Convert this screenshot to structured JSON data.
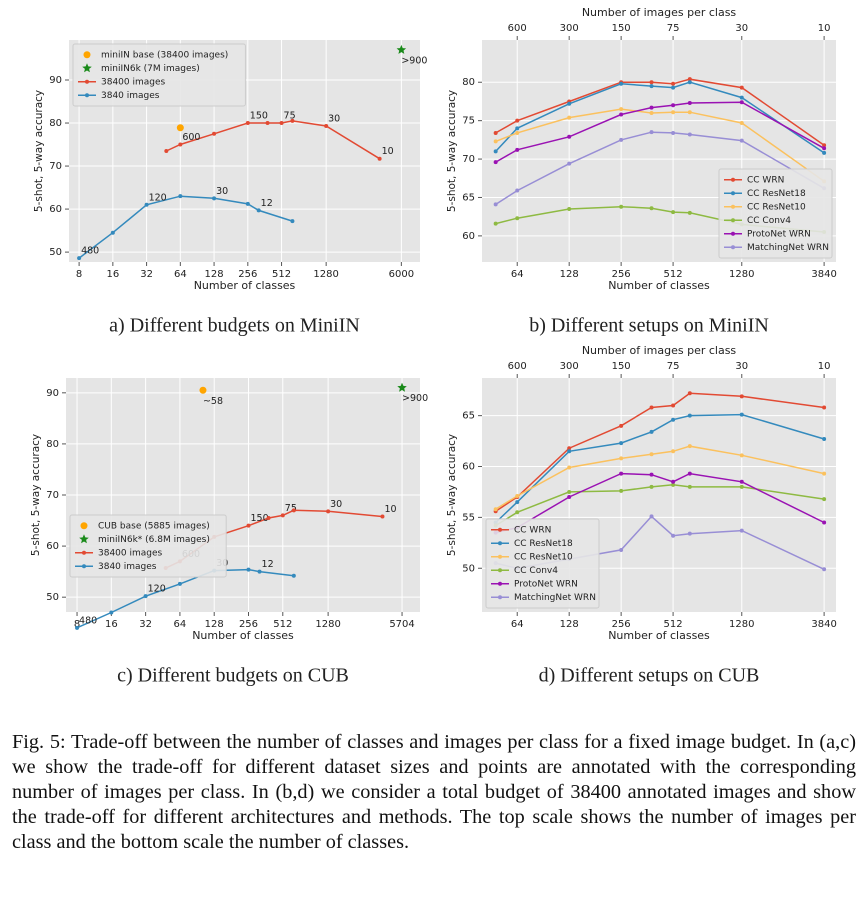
{
  "chart_data": [
    {
      "type": "line",
      "caption": "a) Different budgets on MiniIN",
      "xlabel": "Number of classes",
      "ylabel": "5-shot, 5-way accuracy",
      "xscale": "log",
      "xlim": [
        6.5,
        8800
      ],
      "ylim": [
        47.7,
        99.3
      ],
      "xticks": [
        8,
        16,
        32,
        64,
        128,
        256,
        512,
        1280,
        6000
      ],
      "yticks": [
        50,
        60,
        70,
        80,
        90
      ],
      "grid": true,
      "legend": "upper left",
      "series": [
        {
          "name": "miniIN base (38400 images)",
          "kind": "scatter",
          "marker": "circle",
          "color": "#ffa500",
          "x": [
            64
          ],
          "values": [
            78.9
          ],
          "point_labels": [
            null
          ]
        },
        {
          "name": "miniIN6k (7M images)",
          "kind": "scatter",
          "marker": "star",
          "color": "#1a8a1a",
          "x": [
            6000
          ],
          "values": [
            97
          ],
          "point_labels": [
            ">900"
          ]
        },
        {
          "name": "38400 images",
          "kind": "line",
          "marker": "circle",
          "color": "#e24a33",
          "x": [
            48,
            64,
            128,
            256,
            384,
            512,
            640,
            1280,
            3840
          ],
          "values": [
            73.5,
            75,
            77.5,
            80,
            80,
            80,
            80.5,
            79.3,
            71.7
          ],
          "point_labels": [
            null,
            "600",
            null,
            "150",
            null,
            "75",
            null,
            "30",
            "10"
          ]
        },
        {
          "name": "3840 images",
          "kind": "line",
          "marker": "circle",
          "color": "#348abd",
          "x": [
            8,
            16,
            32,
            64,
            128,
            256,
            320,
            640
          ],
          "values": [
            48.6,
            54.5,
            61,
            63,
            62.5,
            61.2,
            59.7,
            57.2
          ],
          "point_labels": [
            "480",
            null,
            "120",
            null,
            "30",
            null,
            "12",
            null
          ]
        }
      ]
    },
    {
      "type": "line",
      "caption": "b) Different setups on MiniIN",
      "xlabel": "Number of classes",
      "ylabel": "5-shot, 5-way accuracy",
      "x2label": "Number of images per class",
      "xscale": "log",
      "xlim": [
        40,
        4500
      ],
      "ylim": [
        56.6,
        85.5
      ],
      "xticks": [
        64,
        128,
        256,
        512,
        1280,
        3840
      ],
      "x2ticks": [
        {
          "value": 64,
          "label": "600"
        },
        {
          "value": 128,
          "label": "300"
        },
        {
          "value": 256,
          "label": "150"
        },
        {
          "value": 512,
          "label": "75"
        },
        {
          "value": 1280,
          "label": "30"
        },
        {
          "value": 3840,
          "label": "10"
        }
      ],
      "yticks": [
        60,
        65,
        70,
        75,
        80
      ],
      "grid": true,
      "legend": "lower right",
      "series": [
        {
          "name": "CC WRN",
          "kind": "line",
          "marker": "circle",
          "color": "#e24a33",
          "x": [
            48,
            64,
            128,
            256,
            384,
            512,
            640,
            1280,
            3840
          ],
          "values": [
            73.4,
            75,
            77.5,
            80,
            80,
            79.8,
            80.4,
            79.3,
            71.8
          ]
        },
        {
          "name": "CC ResNet18",
          "kind": "line",
          "marker": "circle",
          "color": "#348abd",
          "x": [
            48,
            64,
            128,
            256,
            384,
            512,
            640,
            1280,
            3840
          ],
          "values": [
            71,
            74,
            77.2,
            79.8,
            79.5,
            79.3,
            80,
            78,
            70.8
          ]
        },
        {
          "name": "CC ResNet10",
          "kind": "line",
          "marker": "circle",
          "color": "#fbc15e",
          "x": [
            48,
            64,
            128,
            256,
            384,
            512,
            640,
            1280,
            3840
          ],
          "values": [
            72.3,
            73.4,
            75.4,
            76.5,
            76,
            76.1,
            76.1,
            74.7,
            67.1
          ]
        },
        {
          "name": "CC Conv4",
          "kind": "line",
          "marker": "circle",
          "color": "#8eba42",
          "x": [
            48,
            64,
            128,
            256,
            384,
            512,
            640,
            1280,
            3840
          ],
          "values": [
            61.6,
            62.3,
            63.5,
            63.8,
            63.6,
            63.1,
            63,
            61.5,
            60.5
          ]
        },
        {
          "name": "ProtoNet WRN",
          "kind": "line",
          "marker": "circle",
          "color": "#9a12b3",
          "x": [
            48,
            64,
            128,
            256,
            384,
            512,
            640,
            1280,
            3840
          ],
          "values": [
            69.6,
            71.2,
            72.9,
            75.8,
            76.7,
            77,
            77.3,
            77.4,
            71.4
          ]
        },
        {
          "name": "MatchingNet WRN",
          "kind": "line",
          "marker": "circle",
          "color": "#988ed5",
          "x": [
            48,
            64,
            128,
            256,
            384,
            512,
            640,
            1280,
            3840
          ],
          "values": [
            64.1,
            65.9,
            69.4,
            72.5,
            73.5,
            73.4,
            73.2,
            72.4,
            66.2
          ]
        }
      ]
    },
    {
      "type": "line",
      "caption": "c) Different budgets on CUB",
      "xlabel": "Number of classes",
      "ylabel": "5-shot, 5-way accuracy",
      "xscale": "log",
      "xlim": [
        6.4,
        8200
      ],
      "ylim": [
        47.1,
        92.9
      ],
      "xticks": [
        8,
        16,
        32,
        64,
        128,
        256,
        512,
        1280,
        5704
      ],
      "yticks": [
        50,
        60,
        70,
        80,
        90
      ],
      "grid": true,
      "legend": "center left",
      "series": [
        {
          "name": "CUB base (5885 images)",
          "kind": "scatter",
          "marker": "circle",
          "color": "#ffa500",
          "x": [
            102
          ],
          "values": [
            90.5
          ],
          "point_labels": [
            "~58"
          ]
        },
        {
          "name": "miniIN6k* (6.8M images)",
          "kind": "scatter",
          "marker": "star",
          "color": "#1a8a1a",
          "x": [
            5704
          ],
          "values": [
            91
          ],
          "point_labels": [
            ">900"
          ]
        },
        {
          "name": "38400 images",
          "kind": "line",
          "marker": "circle",
          "color": "#e24a33",
          "x": [
            48,
            64,
            128,
            256,
            384,
            512,
            640,
            1280,
            3840
          ],
          "values": [
            55.7,
            57,
            61.8,
            64,
            65.5,
            66,
            67,
            66.8,
            65.8
          ],
          "point_labels": [
            null,
            "600",
            null,
            "150",
            null,
            "75",
            null,
            "30",
            "10"
          ]
        },
        {
          "name": "3840 images",
          "kind": "line",
          "marker": "circle",
          "color": "#348abd",
          "x": [
            8,
            16,
            32,
            64,
            128,
            256,
            320,
            640
          ],
          "values": [
            44,
            47,
            50.2,
            52.6,
            55.2,
            55.4,
            55,
            54.2
          ],
          "point_labels": [
            "480",
            null,
            "120",
            null,
            "30",
            null,
            "12",
            null
          ]
        }
      ]
    },
    {
      "type": "line",
      "caption": "d) Different setups on CUB",
      "xlabel": "Number of classes",
      "ylabel": "5-shot, 5-way accuracy",
      "x2label": "Number of images per class",
      "xscale": "log",
      "xlim": [
        40,
        4500
      ],
      "ylim": [
        45.7,
        68.7
      ],
      "xticks": [
        64,
        128,
        256,
        512,
        1280,
        3840
      ],
      "x2ticks": [
        {
          "value": 64,
          "label": "600"
        },
        {
          "value": 128,
          "label": "300"
        },
        {
          "value": 256,
          "label": "150"
        },
        {
          "value": 512,
          "label": "75"
        },
        {
          "value": 1280,
          "label": "30"
        },
        {
          "value": 3840,
          "label": "10"
        }
      ],
      "yticks": [
        50,
        55,
        60,
        65
      ],
      "grid": true,
      "legend": "lower left",
      "series": [
        {
          "name": "CC WRN",
          "kind": "line",
          "marker": "circle",
          "color": "#e24a33",
          "x": [
            48,
            64,
            128,
            256,
            384,
            512,
            640,
            1280,
            3840
          ],
          "values": [
            55.6,
            57,
            61.8,
            64,
            65.8,
            66,
            67.2,
            66.9,
            65.8
          ]
        },
        {
          "name": "CC ResNet18",
          "kind": "line",
          "marker": "circle",
          "color": "#348abd",
          "x": [
            48,
            64,
            128,
            256,
            384,
            512,
            640,
            1280,
            3840
          ],
          "values": [
            54.5,
            56.5,
            61.5,
            62.3,
            63.4,
            64.6,
            65,
            65.1,
            62.7
          ]
        },
        {
          "name": "CC ResNet10",
          "kind": "line",
          "marker": "circle",
          "color": "#fbc15e",
          "x": [
            48,
            64,
            128,
            256,
            384,
            512,
            640,
            1280,
            3840
          ],
          "values": [
            55.8,
            57.1,
            59.9,
            60.8,
            61.2,
            61.5,
            62,
            61.1,
            59.3
          ]
        },
        {
          "name": "CC Conv4",
          "kind": "line",
          "marker": "circle",
          "color": "#8eba42",
          "x": [
            48,
            64,
            128,
            256,
            384,
            512,
            640,
            1280,
            3840
          ],
          "values": [
            54.2,
            55.5,
            57.5,
            57.6,
            58,
            58.2,
            58,
            58,
            56.8
          ]
        },
        {
          "name": "ProtoNet WRN",
          "kind": "line",
          "marker": "circle",
          "color": "#9a12b3",
          "x": [
            48,
            64,
            128,
            256,
            384,
            512,
            640,
            1280,
            3840
          ],
          "values": [
            53.5,
            54,
            57,
            59.3,
            59.2,
            58.5,
            59.3,
            58.5,
            54.5
          ]
        },
        {
          "name": "MatchingNet WRN",
          "kind": "line",
          "marker": "circle",
          "color": "#988ed5",
          "x": [
            48,
            64,
            128,
            256,
            384,
            512,
            640,
            1280,
            3840
          ],
          "values": [
            50.5,
            50,
            50.9,
            51.8,
            55.1,
            53.2,
            53.4,
            53.7,
            49.9
          ]
        }
      ]
    }
  ],
  "caption": "Fig. 5: Trade-off between the number of classes and images per class for a fixed image budget. In (a,c) we show the trade-off for different dataset sizes and points are annotated with the corresponding number of images per class. In (b,d) we consider a total budget of 38400 annotated images and show the trade-off for different architectures and methods. The top scale shows the number of images per class and the bottom scale the number of classes."
}
